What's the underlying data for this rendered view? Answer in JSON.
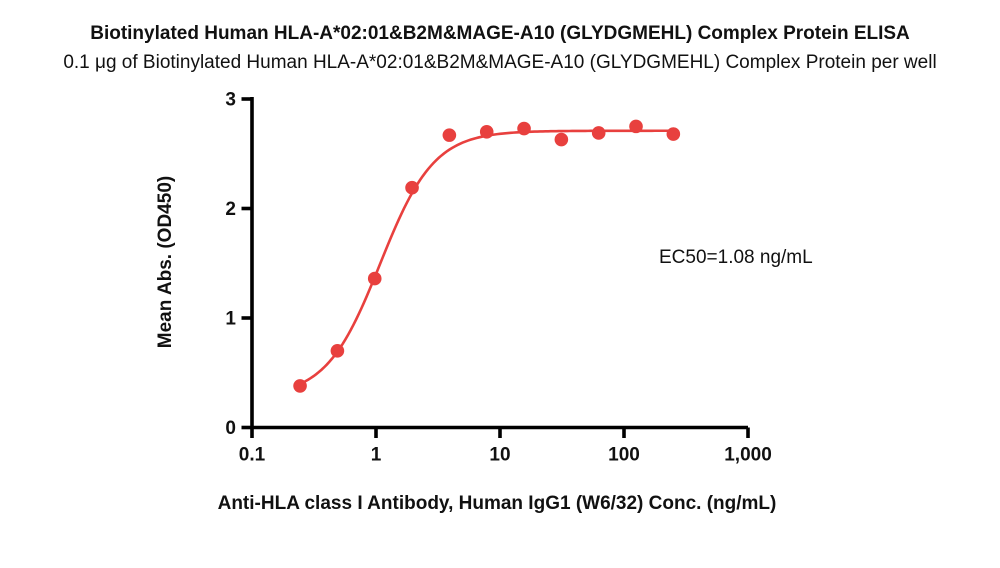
{
  "title": "Biotinylated Human HLA-A*02:01&B2M&MAGE-A10 (GLYDGMEHL) Complex Protein ELISA",
  "subtitle": "0.1 μg of Biotinylated Human HLA-A*02:01&B2M&MAGE-A10 (GLYDGMEHL) Complex Protein per well",
  "chart_data": {
    "type": "scatter",
    "x": [
      0.2441,
      0.4883,
      0.9766,
      1.953,
      3.906,
      7.813,
      15.63,
      31.25,
      62.5,
      125,
      250
    ],
    "y": [
      0.38,
      0.7,
      1.36,
      2.19,
      2.67,
      2.7,
      2.73,
      2.63,
      2.69,
      2.75,
      2.68
    ],
    "xlabel": "Anti-HLA class I Antibody, Human IgG1 (W6/32) Conc. (ng/mL)",
    "ylabel": "Mean Abs. (OD450)",
    "x_scale": "log",
    "xlim": [
      0.1,
      1000
    ],
    "ylim": [
      0,
      3
    ],
    "x_ticks": [
      {
        "value": 0.1,
        "label": "0.1"
      },
      {
        "value": 1,
        "label": "1"
      },
      {
        "value": 10,
        "label": "10"
      },
      {
        "value": 100,
        "label": "100"
      },
      {
        "value": 1000,
        "label": "1,000"
      }
    ],
    "y_ticks": [
      {
        "value": 0,
        "label": "0"
      },
      {
        "value": 1,
        "label": "1"
      },
      {
        "value": 2,
        "label": "2"
      },
      {
        "value": 3,
        "label": "3"
      }
    ],
    "annotation": "EC50=1.08 ng/mL",
    "fit": {
      "model": "4PL",
      "bottom": 0.28,
      "top": 2.71,
      "ec50": 1.08,
      "hill": 2.0
    },
    "grid": false,
    "legend": null,
    "point_color": "#E8403E",
    "line_color": "#E8403E",
    "axis_color": "#000000",
    "text_color": "#111111"
  }
}
